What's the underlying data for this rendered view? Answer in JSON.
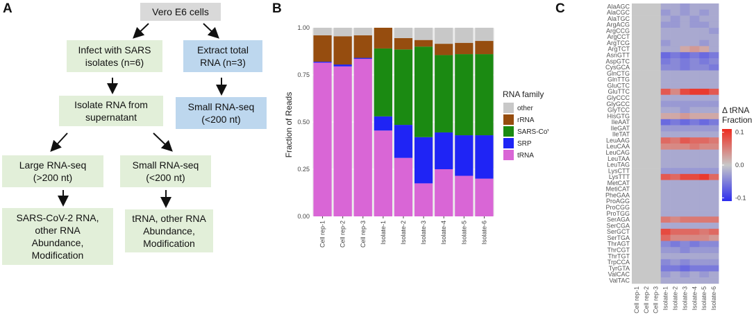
{
  "panel_a": {
    "letter": "A",
    "top": "Vero E6 cells",
    "infect": "Infect with SARS\nisolates (n=6)",
    "extract": "Extract total\nRNA (n=3)",
    "isolate": "Isolate RNA from\nsupernatant",
    "small_right": "Small RNA-seq\n(<200 nt)",
    "large": "Large RNA-seq\n(>200 nt)",
    "small_mid": "Small RNA-seq\n(<200 nt)",
    "out_left": "SARS-CoV-2 RNA,\nother RNA\nAbundance,\nModification",
    "out_mid": "tRNA, other RNA\nAbundance,\nModification",
    "colors": {
      "gray": "#d9d9d9",
      "green": "#e2efd9",
      "blue": "#bdd7ee"
    }
  },
  "panel_b": {
    "letter": "B",
    "legend_title": "RNA family",
    "legend_labels": [
      "other",
      "rRNA",
      "SARS-CoV-2",
      "SRP",
      "tRNA"
    ]
  },
  "panel_c": {
    "letter": "C",
    "legend_title": "Δ tRNA\nFraction",
    "legend_ticks": [
      "0.1",
      "0.0",
      "-0.1"
    ],
    "colors": {
      "pos": "#ee2a1e",
      "zero": "#c8c8c8",
      "neg": "#2b2bee"
    }
  },
  "chart_data": [
    {
      "type": "bar",
      "stacked": true,
      "title": "",
      "xlabel": "",
      "ylabel": "Fraction of Reads",
      "ylim": [
        0,
        1
      ],
      "yticks": [
        "0.00",
        "0.25",
        "0.50",
        "0.75",
        "1.00"
      ],
      "categories": [
        "Cell rep-1",
        "Cell rep-2",
        "Cell rep-3",
        "Isolate-1",
        "Isolate-2",
        "Isolate-3",
        "Isolate-4",
        "Isolate-5",
        "Isolate-6"
      ],
      "series": [
        {
          "name": "tRNA",
          "color": "#d966d6",
          "values": [
            0.815,
            0.795,
            0.835,
            0.455,
            0.31,
            0.175,
            0.25,
            0.215,
            0.2
          ]
        },
        {
          "name": "SRP",
          "color": "#1f24f5",
          "values": [
            0.005,
            0.01,
            0.005,
            0.075,
            0.175,
            0.245,
            0.195,
            0.215,
            0.23
          ]
        },
        {
          "name": "SARS-CoV-2",
          "color": "#1b8a12",
          "values": [
            0.0,
            0.0,
            0.0,
            0.36,
            0.4,
            0.48,
            0.41,
            0.43,
            0.43
          ]
        },
        {
          "name": "rRNA",
          "color": "#964d0f",
          "values": [
            0.14,
            0.15,
            0.12,
            0.11,
            0.06,
            0.035,
            0.06,
            0.06,
            0.07
          ]
        },
        {
          "name": "other",
          "color": "#c8c8c8",
          "values": [
            0.04,
            0.045,
            0.04,
            0.0,
            0.055,
            0.065,
            0.085,
            0.08,
            0.07
          ]
        }
      ]
    },
    {
      "type": "heatmap",
      "title": "",
      "legend_title": "Δ tRNA Fraction",
      "color_range": [
        -0.1,
        0.1
      ],
      "columns": [
        "Cell rep-1",
        "Cell rep-2",
        "Cell rep-3",
        "Isolate-1",
        "Isolate-2",
        "Isolate-3",
        "Isolate-4",
        "Isolate-5",
        "Isolate-6"
      ],
      "rows": [
        "AlaAGC",
        "AlaCGC",
        "AlaTGC",
        "ArgACG",
        "ArgCCG",
        "ArgCCT",
        "ArgTCG",
        "ArgTCT",
        "AsnGTT",
        "AspGTC",
        "CysGCA",
        "GlnCTG",
        "GlnTTG",
        "GluCTC",
        "GluTTC",
        "GlyCCC",
        "GlyGCC",
        "GlyTCC",
        "HisGTG",
        "IleAAT",
        "IleGAT",
        "IleTAT",
        "LeuAAG",
        "LeuCAA",
        "LeuCAG",
        "LeuTAA",
        "LeuTAG",
        "LysCTT",
        "LysTTT",
        "MetCAT",
        "MetiCAT",
        "PheGAA",
        "ProAGG",
        "ProCGG",
        "ProTGG",
        "SerAGA",
        "SerCGA",
        "SerGCT",
        "SerTGA",
        "ThrAGT",
        "ThrCGT",
        "ThrTGT",
        "TrpCCA",
        "TyrGTA",
        "ValCAC",
        "ValTAC"
      ],
      "isolate_values": [
        [
          -0.02,
          -0.02,
          -0.03,
          -0.02,
          -0.02,
          -0.02
        ],
        [
          -0.03,
          -0.02,
          -0.03,
          -0.02,
          -0.03,
          -0.02
        ],
        [
          -0.02,
          -0.03,
          -0.02,
          -0.03,
          -0.02,
          -0.02
        ],
        [
          -0.03,
          -0.03,
          -0.02,
          -0.03,
          -0.03,
          -0.02
        ],
        [
          -0.02,
          -0.02,
          -0.02,
          -0.02,
          -0.02,
          -0.03
        ],
        [
          -0.02,
          -0.02,
          -0.02,
          -0.02,
          -0.02,
          -0.02
        ],
        [
          -0.03,
          -0.02,
          -0.02,
          -0.02,
          -0.03,
          -0.02
        ],
        [
          -0.02,
          -0.02,
          0.02,
          0.03,
          0.02,
          -0.02
        ],
        [
          -0.06,
          -0.05,
          -0.06,
          -0.05,
          -0.06,
          -0.05
        ],
        [
          -0.05,
          -0.04,
          -0.05,
          -0.04,
          -0.05,
          -0.04
        ],
        [
          -0.04,
          -0.04,
          -0.05,
          -0.04,
          -0.04,
          -0.05
        ],
        [
          -0.02,
          -0.02,
          -0.02,
          -0.02,
          -0.02,
          -0.02
        ],
        [
          -0.02,
          -0.02,
          -0.02,
          -0.02,
          -0.02,
          -0.02
        ],
        [
          -0.02,
          -0.02,
          -0.02,
          -0.02,
          -0.02,
          -0.02
        ],
        [
          0.07,
          0.04,
          0.08,
          0.09,
          0.09,
          0.07
        ],
        [
          -0.02,
          -0.02,
          -0.02,
          -0.02,
          -0.02,
          -0.02
        ],
        [
          -0.03,
          -0.03,
          -0.03,
          -0.03,
          -0.03,
          -0.03
        ],
        [
          -0.02,
          -0.02,
          -0.03,
          -0.02,
          -0.02,
          -0.02
        ],
        [
          0.02,
          0.02,
          0.03,
          0.02,
          0.02,
          0.02
        ],
        [
          -0.06,
          -0.05,
          -0.06,
          -0.05,
          -0.06,
          -0.05
        ],
        [
          -0.03,
          -0.03,
          -0.03,
          -0.03,
          -0.03,
          -0.03
        ],
        [
          -0.02,
          -0.02,
          -0.02,
          -0.02,
          -0.02,
          -0.02
        ],
        [
          0.06,
          0.05,
          0.07,
          0.06,
          0.06,
          0.05
        ],
        [
          0.04,
          0.04,
          0.04,
          0.05,
          0.04,
          0.04
        ],
        [
          -0.02,
          -0.02,
          -0.02,
          -0.02,
          -0.02,
          -0.02
        ],
        [
          -0.02,
          -0.02,
          -0.02,
          -0.02,
          -0.02,
          -0.02
        ],
        [
          -0.02,
          -0.02,
          -0.02,
          -0.02,
          -0.02,
          -0.02
        ],
        [
          -0.03,
          -0.03,
          -0.03,
          -0.03,
          -0.03,
          -0.03
        ],
        [
          0.07,
          0.06,
          0.08,
          0.08,
          0.09,
          0.06
        ],
        [
          -0.02,
          -0.02,
          -0.02,
          -0.02,
          -0.02,
          -0.02
        ],
        [
          -0.02,
          -0.02,
          -0.02,
          -0.02,
          -0.02,
          -0.02
        ],
        [
          -0.02,
          -0.02,
          -0.02,
          -0.02,
          -0.02,
          -0.02
        ],
        [
          -0.02,
          -0.02,
          -0.02,
          -0.02,
          -0.02,
          -0.02
        ],
        [
          -0.02,
          -0.02,
          -0.02,
          -0.02,
          -0.02,
          -0.02
        ],
        [
          -0.02,
          -0.02,
          -0.02,
          -0.02,
          -0.02,
          -0.02
        ],
        [
          0.05,
          0.04,
          0.05,
          0.05,
          0.05,
          0.05
        ],
        [
          -0.02,
          -0.02,
          -0.02,
          -0.02,
          -0.02,
          -0.02
        ],
        [
          0.08,
          0.06,
          0.06,
          0.06,
          0.05,
          0.06
        ],
        [
          0.06,
          0.04,
          0.04,
          0.04,
          0.04,
          0.03
        ],
        [
          -0.04,
          -0.05,
          -0.04,
          -0.05,
          -0.04,
          -0.04
        ],
        [
          -0.03,
          -0.03,
          -0.04,
          -0.03,
          -0.03,
          -0.03
        ],
        [
          -0.02,
          -0.02,
          -0.02,
          -0.02,
          -0.02,
          -0.02
        ],
        [
          -0.04,
          -0.03,
          -0.04,
          -0.03,
          -0.03,
          -0.03
        ],
        [
          -0.05,
          -0.05,
          -0.06,
          -0.05,
          -0.05,
          -0.05
        ],
        [
          -0.03,
          -0.02,
          -0.03,
          -0.02,
          -0.03,
          -0.02
        ],
        [
          -0.02,
          -0.02,
          -0.02,
          -0.02,
          -0.02,
          -0.02
        ]
      ]
    }
  ]
}
